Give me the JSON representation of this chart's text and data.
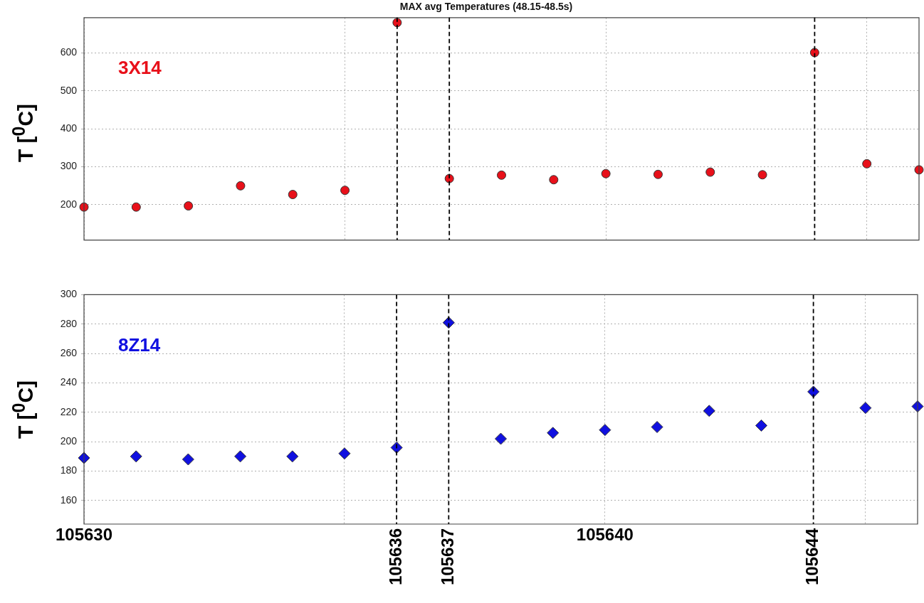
{
  "chart_data": [
    {
      "type": "scatter",
      "title": "MAX avg Temperatures (48.15-48.5s)",
      "ylabel": "T [$^{0}$C]",
      "x": [
        105630,
        105631,
        105632,
        105633,
        105634,
        105635,
        105636,
        105637,
        105638,
        105639,
        105640,
        105641,
        105642,
        105643,
        105644,
        105645,
        105646
      ],
      "series": [
        {
          "name": "3X14",
          "color": "#e8101a",
          "values": [
            194,
            194,
            197,
            250,
            227,
            238,
            680,
            269,
            278,
            266,
            282,
            280,
            286,
            279,
            601,
            308,
            292
          ]
        }
      ],
      "xlim": [
        105630,
        105646
      ],
      "xticks": [
        {
          "value": 105630,
          "label": null
        },
        {
          "value": 105635,
          "label": null
        },
        {
          "value": 105640,
          "label": null
        },
        {
          "value": 105645,
          "label": null
        }
      ],
      "ylim": [
        107,
        693
      ],
      "yticks": [
        200,
        300,
        400,
        500,
        600
      ],
      "grid": true,
      "marker": "circle",
      "tick_labels": "y",
      "legend": false,
      "ref_lines": [
        {
          "axis": "x",
          "value": 105636,
          "color": "#000000",
          "line_style": "dashed"
        },
        {
          "axis": "x",
          "value": 105637,
          "color": "#000000",
          "line_style": "dashed"
        },
        {
          "axis": "x",
          "value": 105644,
          "color": "#000000",
          "line_style": "dashed"
        }
      ]
    },
    {
      "type": "scatter",
      "ylabel": "T [$^{0}$C]",
      "x": [
        105630,
        105631,
        105632,
        105633,
        105634,
        105635,
        105636,
        105637,
        105638,
        105639,
        105640,
        105641,
        105642,
        105643,
        105644,
        105645,
        105646
      ],
      "series": [
        {
          "name": "8Z14",
          "color": "#1010e0",
          "values": [
            189,
            190,
            188,
            190,
            190,
            192,
            196,
            281,
            202,
            206,
            208,
            210,
            221,
            211,
            234,
            223,
            224
          ]
        }
      ],
      "xlim": [
        105630,
        105646
      ],
      "xticks": [
        105630,
        {
          "value": 105635,
          "label": null
        },
        105640,
        {
          "value": 105645,
          "label": null
        }
      ],
      "ylim": [
        144,
        300
      ],
      "yticks": [
        160,
        180,
        200,
        220,
        240,
        260,
        280,
        300
      ],
      "grid": true,
      "marker": "diamond",
      "legend": false,
      "ref_lines": [
        {
          "axis": "x",
          "value": 105636,
          "label": "105636",
          "color": "#000000",
          "line_style": "dashed"
        },
        {
          "axis": "x",
          "value": 105637,
          "label": "105637",
          "color": "#000000",
          "line_style": "dashed"
        },
        {
          "axis": "x",
          "value": 105644,
          "label": "105644",
          "color": "#000000",
          "line_style": "dashed"
        }
      ]
    }
  ]
}
